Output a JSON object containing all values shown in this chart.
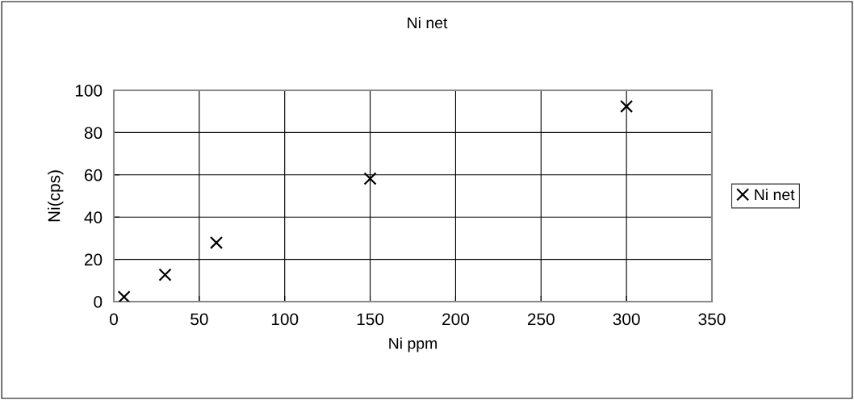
{
  "chart_data": {
    "type": "scatter",
    "title": "Ni net",
    "xlabel": "Ni ppm",
    "ylabel": "Ni(cps)",
    "x": [
      6,
      30,
      60,
      150,
      300
    ],
    "series": [
      {
        "name": "Ni net",
        "color": "#000000",
        "values": [
          2.2,
          12.7,
          27.9,
          58.2,
          92.4
        ]
      }
    ],
    "xlim": [
      0,
      350
    ],
    "xticks": [
      0,
      50,
      100,
      150,
      200,
      250,
      300,
      350
    ],
    "ylim": [
      0,
      100
    ],
    "yticks": [
      0,
      20,
      40,
      60,
      80,
      100
    ],
    "grid": true,
    "legend": "right",
    "marker": "cross"
  }
}
